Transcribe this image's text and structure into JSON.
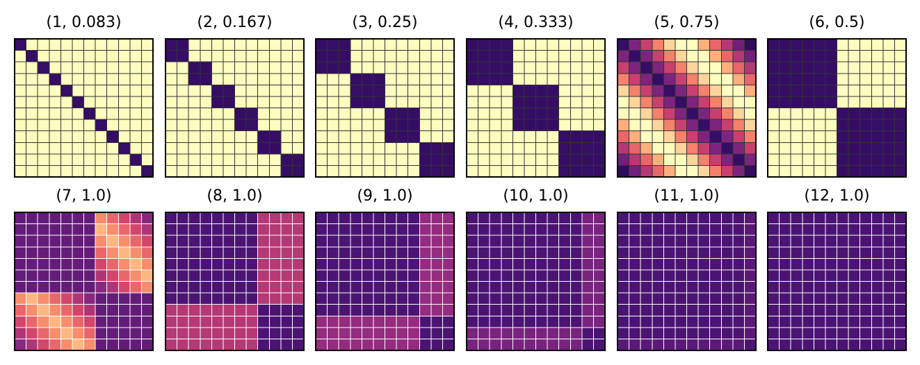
{
  "chart_data": {
    "type": "heatmap",
    "grid_size": 12,
    "colormap": "magma",
    "colormap_stops": [
      "#000004",
      "#3b0f70",
      "#8c2981",
      "#de4968",
      "#fe9f6d",
      "#fcfdbf"
    ],
    "frame_color": "#000000",
    "panels": [
      {
        "title": "(1, 0.083)",
        "period": 1,
        "threshold": 0.083,
        "grid_color": "#333333"
      },
      {
        "title": "(2, 0.167)",
        "period": 2,
        "threshold": 0.167,
        "grid_color": "#333333"
      },
      {
        "title": "(3, 0.25)",
        "period": 3,
        "threshold": 0.25,
        "grid_color": "#333333"
      },
      {
        "title": "(4, 0.333)",
        "period": 4,
        "threshold": 0.333,
        "grid_color": "#333333"
      },
      {
        "title": "(5, 0.75)",
        "period": 5,
        "threshold": 0.75,
        "grid_color": "#333333"
      },
      {
        "title": "(6, 0.5)",
        "period": 6,
        "threshold": 0.5,
        "grid_color": "#333333"
      },
      {
        "title": "(7, 1.0)",
        "period": 7,
        "threshold": 1.0,
        "grid_color": "#ffffff"
      },
      {
        "title": "(8, 1.0)",
        "period": 8,
        "threshold": 1.0,
        "grid_color": "#ffffff"
      },
      {
        "title": "(9, 1.0)",
        "period": 9,
        "threshold": 1.0,
        "grid_color": "#ffffff"
      },
      {
        "title": "(10, 1.0)",
        "period": 10,
        "threshold": 1.0,
        "grid_color": "#ffffff"
      },
      {
        "title": "(11, 1.0)",
        "period": 11,
        "threshold": 1.0,
        "grid_color": "#ffffff"
      },
      {
        "title": "(12, 1.0)",
        "period": 12,
        "threshold": 1.0,
        "grid_color": "#ffffff"
      }
    ]
  }
}
